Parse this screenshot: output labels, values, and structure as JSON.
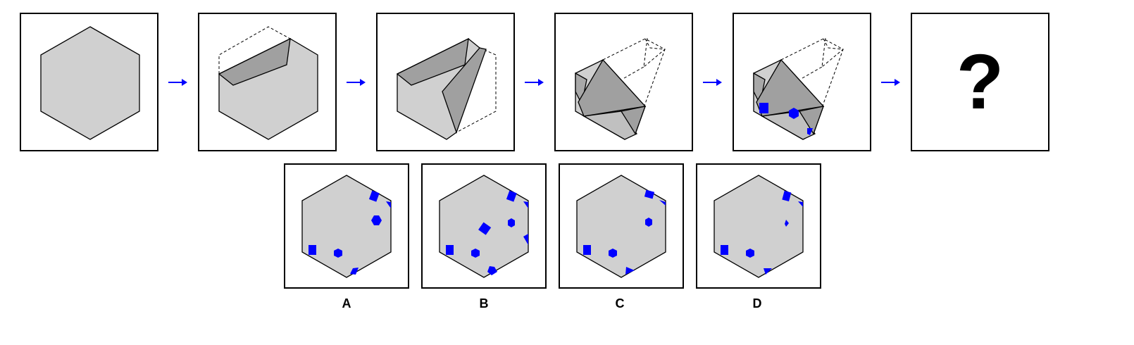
{
  "question_mark": "?",
  "options": [
    {
      "label": "A"
    },
    {
      "label": "B"
    },
    {
      "label": "C"
    },
    {
      "label": "D"
    }
  ],
  "colors": {
    "paper": "#d0d0d0",
    "fold": "#a0a0a0",
    "hole": "#0000ff",
    "arrow": "#0000ff",
    "border": "#000000"
  }
}
